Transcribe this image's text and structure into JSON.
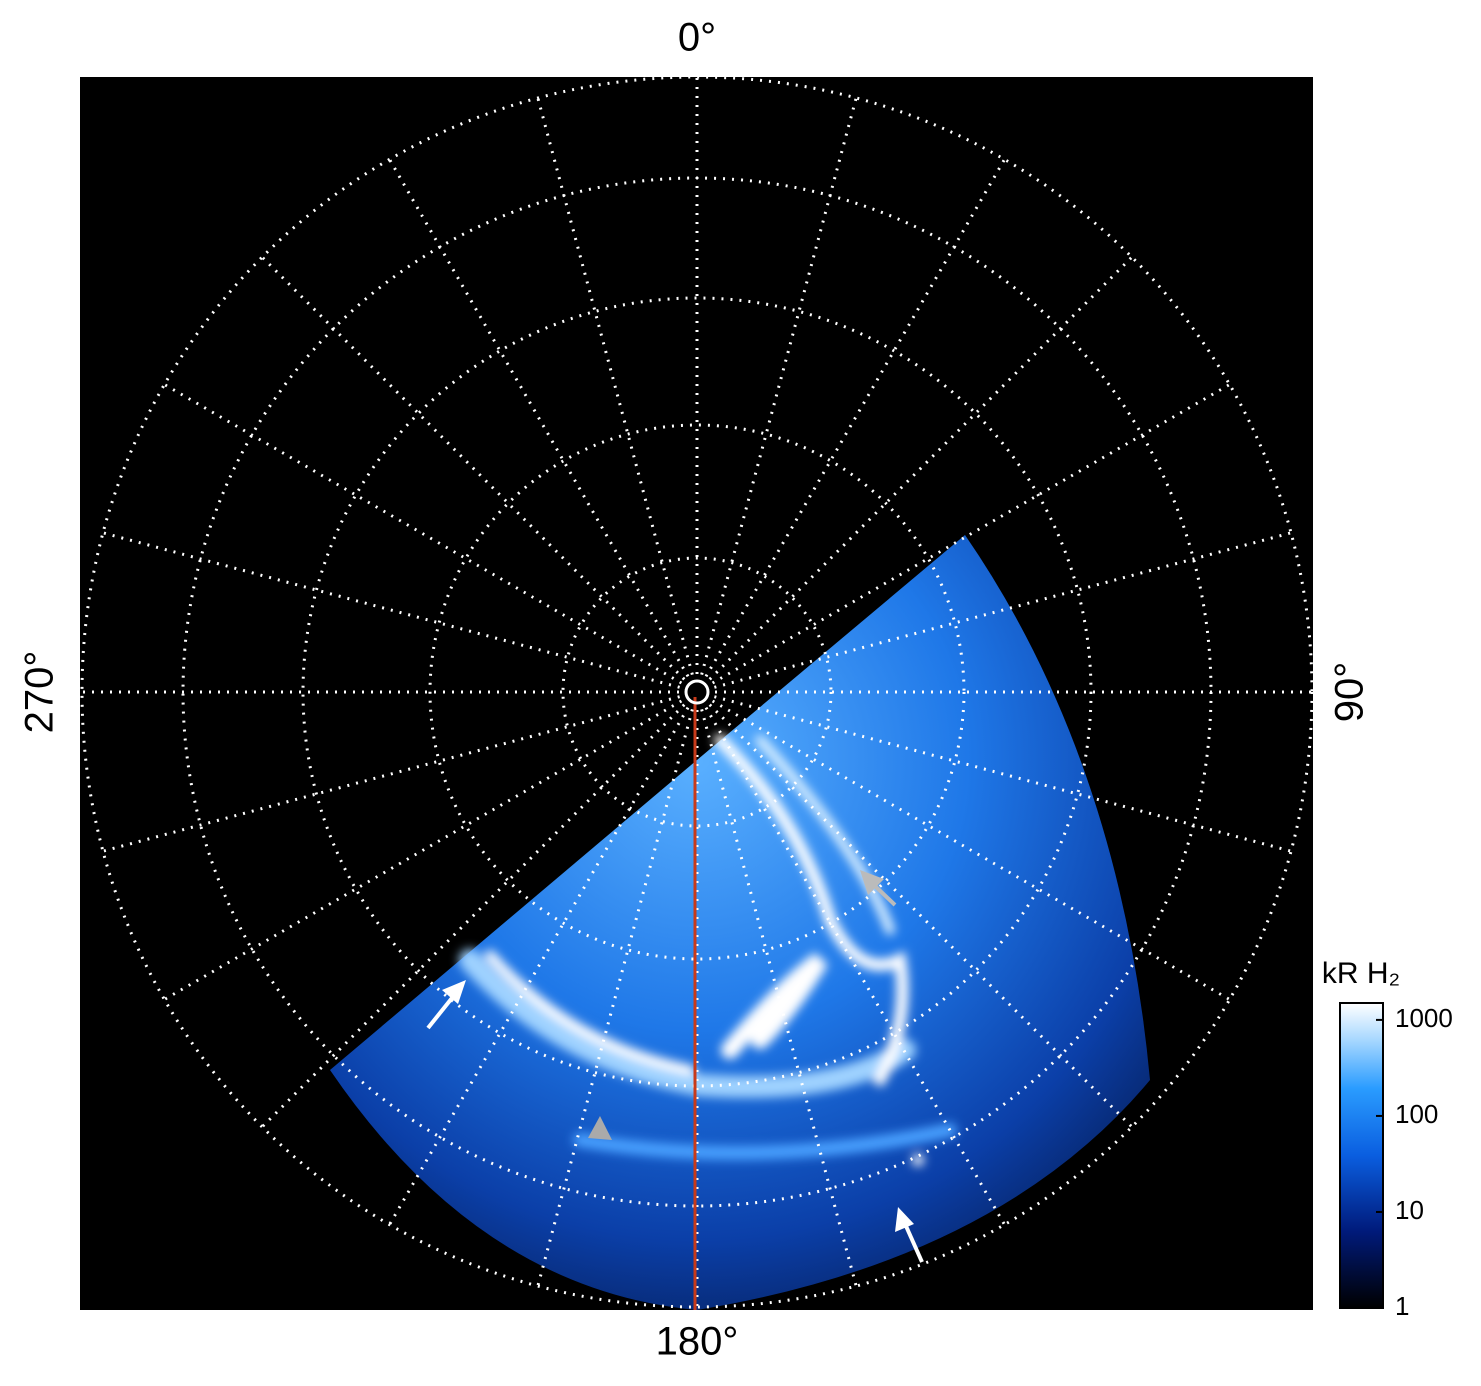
{
  "chart_data": {
    "type": "polar-image",
    "angle_labels": [
      {
        "value": 0,
        "label": "0°"
      },
      {
        "value": 90,
        "label": "90°"
      },
      {
        "value": 180,
        "label": "180°"
      },
      {
        "value": 270,
        "label": "270°"
      }
    ],
    "colorbar": {
      "label": "kR H₂",
      "log": true,
      "clim": [
        1,
        1500
      ],
      "ticks": [
        1,
        10,
        100,
        1000
      ]
    }
  }
}
